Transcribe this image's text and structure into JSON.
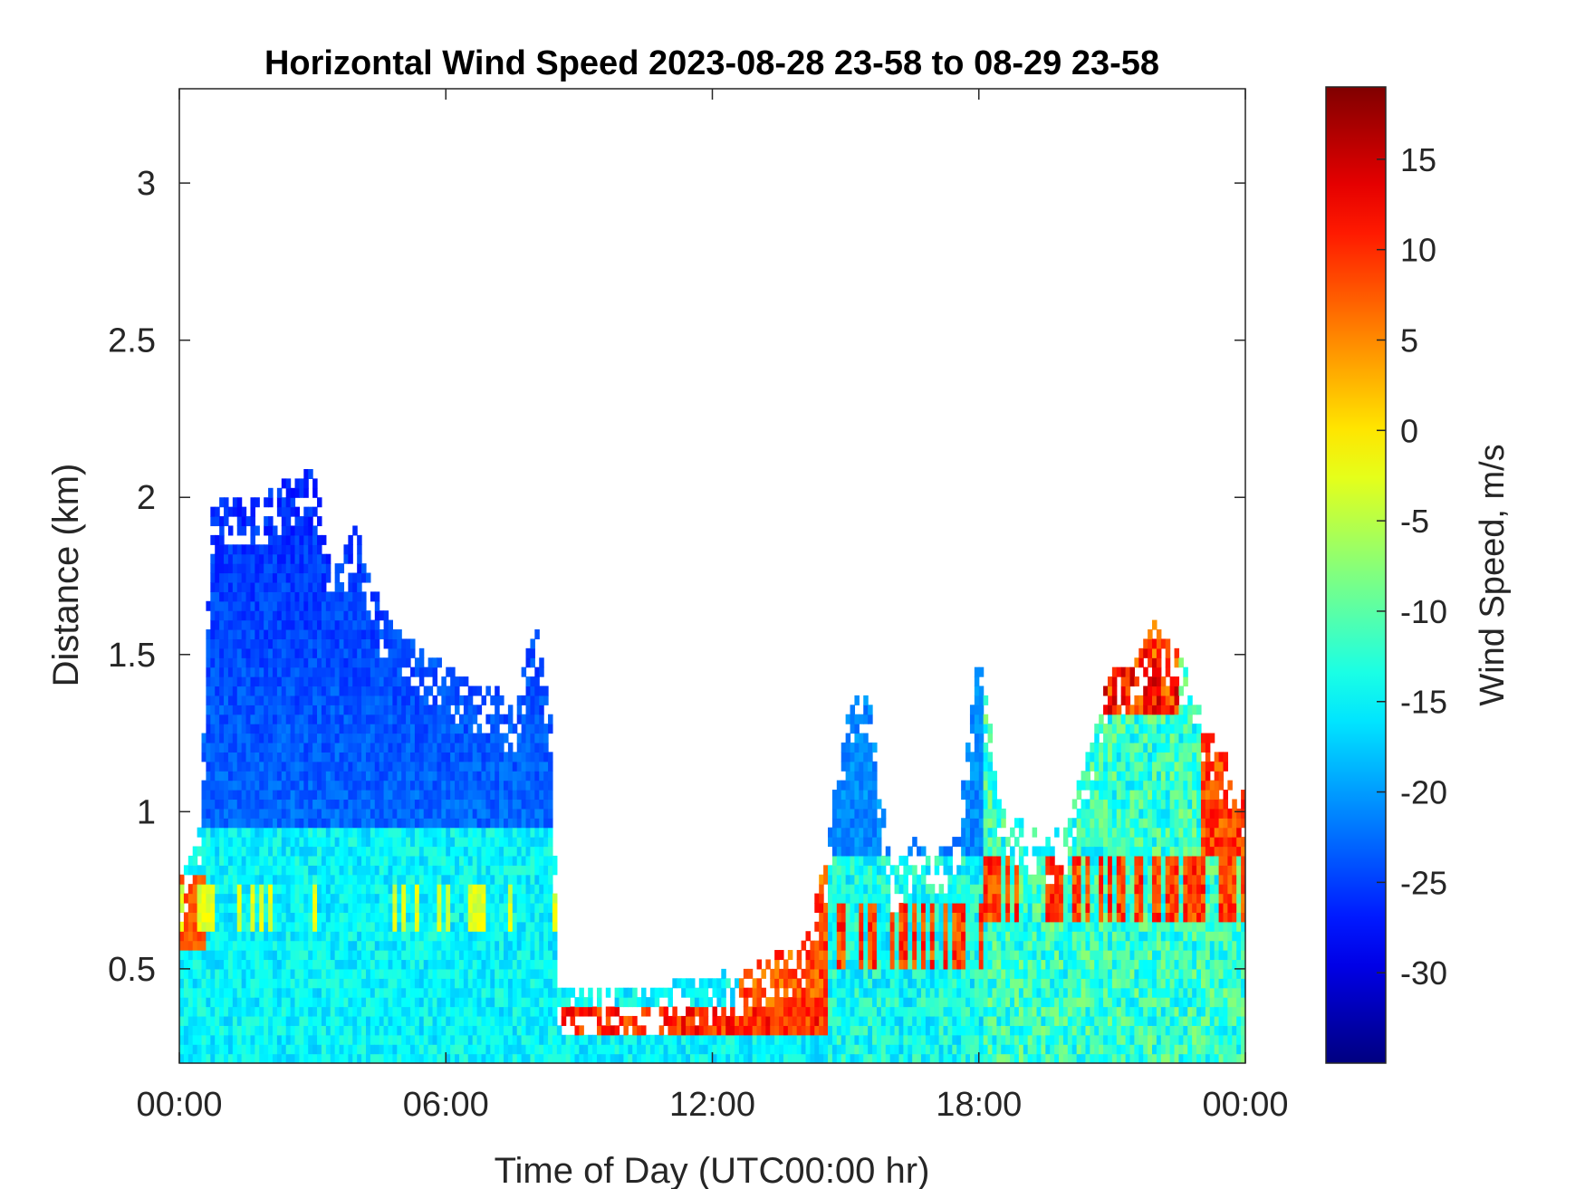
{
  "chart_data": {
    "type": "heatmap",
    "title": "Horizontal Wind Speed 2023-08-28 23-58 to 08-29 23-58",
    "xlabel": "Time of Day (UTC00:00 hr)",
    "ylabel": "Distance (km)",
    "colorbar_label": "Wind Speed, m/s",
    "x_ticks": [
      "00:00",
      "06:00",
      "12:00",
      "18:00",
      "00:00"
    ],
    "x_tick_hours": [
      0,
      6,
      12,
      18,
      24
    ],
    "xlim_hours": [
      0,
      24
    ],
    "y_ticks": [
      "0.5",
      "1",
      "1.5",
      "2",
      "2.5",
      "3"
    ],
    "y_tick_values": [
      0.5,
      1,
      1.5,
      2,
      2.5,
      3
    ],
    "ylim_km": [
      0.2,
      3.3
    ],
    "colorbar_ticks": [
      "15",
      "10",
      "5",
      "0",
      "-5",
      "-10",
      "-15",
      "-20",
      "-25",
      "-30"
    ],
    "colorbar_tick_values": [
      15,
      10,
      5,
      0,
      -5,
      -10,
      -15,
      -20,
      -25,
      -30
    ],
    "clim": [
      -35,
      19
    ],
    "colormap": "jet",
    "grid": false,
    "data_top_profile_km": [
      [
        0.0,
        0.75
      ],
      [
        0.5,
        1.0
      ],
      [
        0.7,
        1.95
      ],
      [
        1.0,
        1.98
      ],
      [
        1.5,
        2.0
      ],
      [
        2.0,
        2.0
      ],
      [
        2.5,
        2.05
      ],
      [
        3.0,
        2.08
      ],
      [
        3.5,
        1.75
      ],
      [
        4.0,
        1.9
      ],
      [
        4.5,
        1.65
      ],
      [
        5.0,
        1.55
      ],
      [
        5.5,
        1.5
      ],
      [
        6.0,
        1.45
      ],
      [
        6.5,
        1.4
      ],
      [
        7.0,
        1.4
      ],
      [
        7.5,
        1.3
      ],
      [
        8.0,
        1.6
      ],
      [
        8.4,
        1.3
      ],
      [
        8.5,
        0.42
      ],
      [
        10.0,
        0.42
      ],
      [
        11.0,
        0.44
      ],
      [
        12.0,
        0.46
      ],
      [
        13.0,
        0.52
      ],
      [
        14.0,
        0.55
      ],
      [
        14.5,
        0.8
      ],
      [
        15.0,
        1.3
      ],
      [
        15.5,
        1.4
      ],
      [
        16.0,
        0.8
      ],
      [
        16.5,
        0.9
      ],
      [
        17.0,
        0.85
      ],
      [
        17.5,
        0.9
      ],
      [
        18.0,
        1.5
      ],
      [
        18.5,
        1.0
      ],
      [
        19.0,
        0.95
      ],
      [
        19.5,
        0.9
      ],
      [
        20.0,
        0.95
      ],
      [
        21.0,
        1.45
      ],
      [
        21.5,
        1.45
      ],
      [
        22.0,
        1.6
      ],
      [
        22.5,
        1.5
      ],
      [
        23.0,
        1.3
      ],
      [
        24.0,
        1.05
      ]
    ]
  }
}
